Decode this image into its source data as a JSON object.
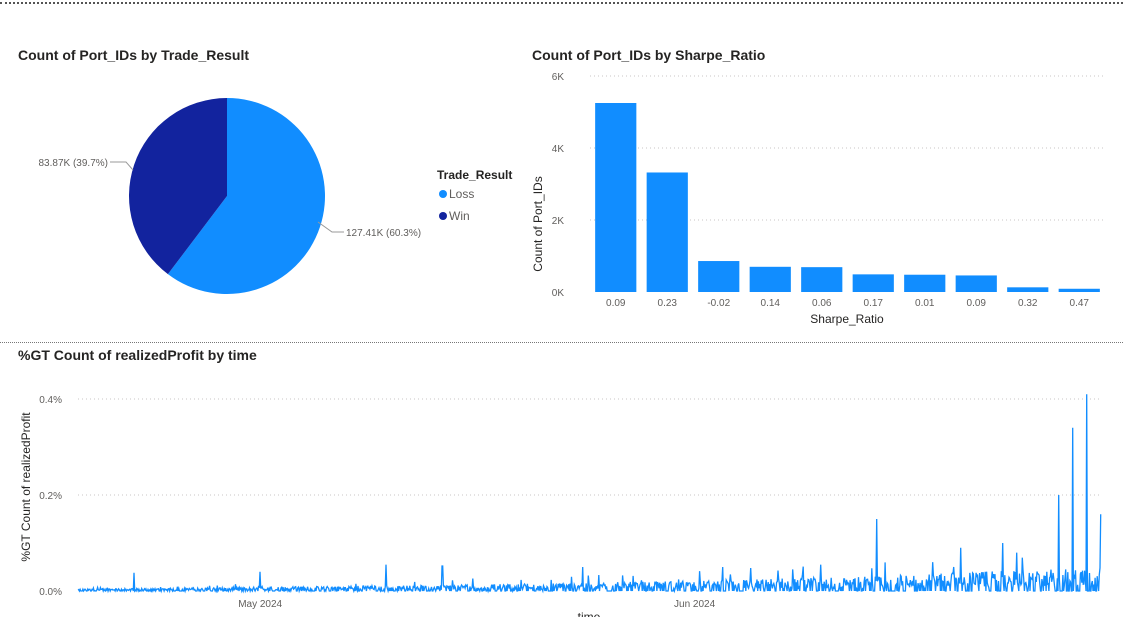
{
  "pie_title": "Count of Port_IDs by Trade_Result",
  "bar_title": "Count of Port_IDs by Sharpe_Ratio",
  "line_title": "%GT Count of realizedProfit by time",
  "colors": {
    "loss": "#118DFF",
    "win": "#12239E",
    "bar": "#118DFF",
    "line": "#118DFF"
  },
  "chart_data": [
    {
      "type": "pie",
      "title": "Count of Port_IDs by Trade_Result",
      "legend_title": "Trade_Result",
      "legend_position": "right",
      "slices": [
        {
          "label": "Loss",
          "value": 127410,
          "data_label": "127.41K (60.3%)"
        },
        {
          "label": "Win",
          "value": 83870,
          "data_label": "83.87K (39.7%)"
        }
      ]
    },
    {
      "type": "bar",
      "title": "Count of Port_IDs by Sharpe_Ratio",
      "xlabel": "Sharpe_Ratio",
      "ylabel": "Count of Port_IDs",
      "categories": [
        "0.09",
        "0.23",
        "-0.02",
        "0.14",
        "0.06",
        "0.17",
        "0.01",
        "0.09",
        "0.32",
        "0.47"
      ],
      "values": [
        5250,
        3320,
        860,
        700,
        690,
        490,
        480,
        460,
        130,
        90
      ],
      "ylim": [
        0,
        6000
      ],
      "yticks": [
        {
          "value": 0,
          "label": "0K"
        },
        {
          "value": 2000,
          "label": "2K"
        },
        {
          "value": 4000,
          "label": "4K"
        },
        {
          "value": 6000,
          "label": "6K"
        }
      ],
      "grid": true
    },
    {
      "type": "line",
      "title": "%GT Count of realizedProfit by time",
      "xlabel": "time",
      "ylabel": "%GT Count of realizedProfit",
      "x_range": [
        "2024-04-18",
        "2024-06-30"
      ],
      "xticks": [
        {
          "date": "2024-05-01",
          "label": "May 2024"
        },
        {
          "date": "2024-06-01",
          "label": "Jun 2024"
        }
      ],
      "ylim": [
        0,
        0.45
      ],
      "yticks": [
        {
          "value": 0,
          "label": "0.0%"
        },
        {
          "value": 0.2,
          "label": "0.2%"
        },
        {
          "value": 0.4,
          "label": "0.4%"
        }
      ],
      "grid": true,
      "peaks": [
        {
          "date": "2024-04-22",
          "value": 0.038
        },
        {
          "date": "2024-05-01",
          "value": 0.04
        },
        {
          "date": "2024-05-10",
          "value": 0.055
        },
        {
          "date": "2024-05-14",
          "value": 0.052
        },
        {
          "date": "2024-05-24",
          "value": 0.05
        },
        {
          "date": "2024-06-03",
          "value": 0.05
        },
        {
          "date": "2024-06-05",
          "value": 0.048
        },
        {
          "date": "2024-06-08",
          "value": 0.045
        },
        {
          "date": "2024-06-10",
          "value": 0.055
        },
        {
          "date": "2024-06-14",
          "value": 0.15
        },
        {
          "date": "2024-06-18",
          "value": 0.06
        },
        {
          "date": "2024-06-20",
          "value": 0.09
        },
        {
          "date": "2024-06-23",
          "value": 0.1
        },
        {
          "date": "2024-06-24",
          "value": 0.08
        },
        {
          "date": "2024-06-27",
          "value": 0.2
        },
        {
          "date": "2024-06-28",
          "value": 0.34
        },
        {
          "date": "2024-06-29",
          "value": 0.41
        },
        {
          "date": "2024-06-30",
          "value": 0.16
        }
      ]
    }
  ]
}
